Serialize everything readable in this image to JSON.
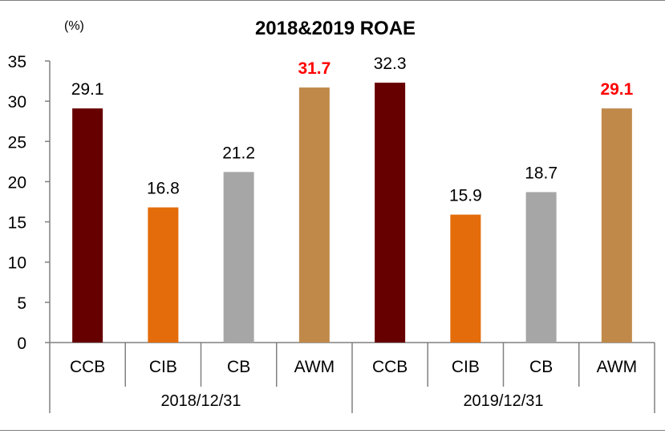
{
  "chart_data": {
    "type": "bar",
    "title": "2018&2019 ROAE",
    "unit_label": "(%)",
    "ylim": [
      0,
      35
    ],
    "yticks": [
      0,
      5,
      10,
      15,
      20,
      25,
      30,
      35
    ],
    "grid": false,
    "groups": [
      {
        "label": "2018/12/31",
        "bars": [
          {
            "category": "CCB",
            "value": 29.1,
            "label": "29.1",
            "color": "#660000",
            "highlight": false
          },
          {
            "category": "CIB",
            "value": 16.8,
            "label": "16.8",
            "color": "#e46c0a",
            "highlight": false
          },
          {
            "category": "CB",
            "value": 21.2,
            "label": "21.2",
            "color": "#a6a6a6",
            "highlight": false
          },
          {
            "category": "AWM",
            "value": 31.7,
            "label": "31.7",
            "color": "#c0894a",
            "highlight": true
          }
        ]
      },
      {
        "label": "2019/12/31",
        "bars": [
          {
            "category": "CCB",
            "value": 32.3,
            "label": "32.3",
            "color": "#660000",
            "highlight": false
          },
          {
            "category": "CIB",
            "value": 15.9,
            "label": "15.9",
            "color": "#e46c0a",
            "highlight": false
          },
          {
            "category": "CB",
            "value": 18.7,
            "label": "18.7",
            "color": "#a6a6a6",
            "highlight": false
          },
          {
            "category": "AWM",
            "value": 29.1,
            "label": "29.1",
            "color": "#c0894a",
            "highlight": true
          }
        ]
      }
    ],
    "highlight_label_color": "#ff0000"
  }
}
